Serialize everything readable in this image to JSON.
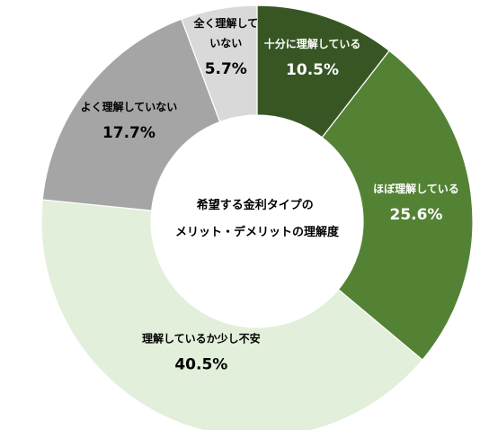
{
  "chart_data": {
    "type": "donut",
    "title_lines": [
      "希望する金利タイプの",
      "メリット・デメリットの理解度"
    ],
    "unit": "%",
    "slices": [
      {
        "label_lines": [
          "十分に理解している"
        ],
        "value": 10.5,
        "value_text": "10.5%",
        "color": "#375623",
        "text_color": "#ffffff"
      },
      {
        "label_lines": [
          "ほぼ理解している"
        ],
        "value": 25.6,
        "value_text": "25.6%",
        "color": "#548235",
        "text_color": "#ffffff"
      },
      {
        "label_lines": [
          "理解しているか少し不安"
        ],
        "value": 40.5,
        "value_text": "40.5%",
        "color": "#e2efda",
        "text_color": "#000000"
      },
      {
        "label_lines": [
          "よく理解していない"
        ],
        "value": 17.7,
        "value_text": "17.7%",
        "color": "#a5a5a5",
        "text_color": "#000000"
      },
      {
        "label_lines": [
          "全く理解して",
          "いない"
        ],
        "value": 5.7,
        "value_text": "5.7%",
        "color": "#d9d9d9",
        "text_color": "#000000"
      }
    ]
  }
}
